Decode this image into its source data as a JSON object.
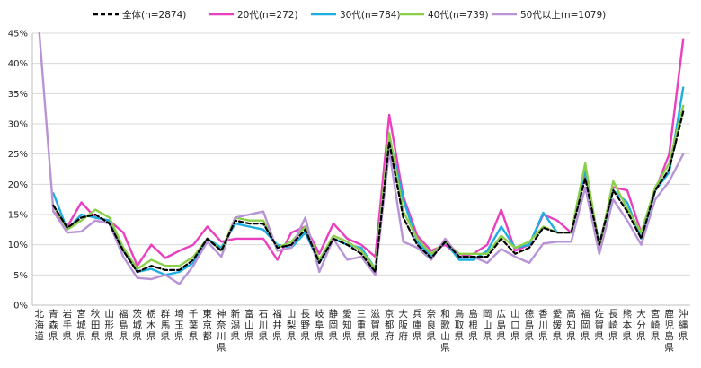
{
  "chart_data": {
    "type": "line",
    "title": "",
    "xlabel": "",
    "ylabel": "",
    "ylim": [
      0,
      45
    ],
    "ytick_values": [
      0,
      5,
      10,
      15,
      20,
      25,
      30,
      35,
      40,
      45
    ],
    "ytick_labels": [
      "0%",
      "5%",
      "10%",
      "15%",
      "20%",
      "25%",
      "30%",
      "35%",
      "40%",
      "45%"
    ],
    "legend_position": "top",
    "grid": true,
    "categories": [
      "北海道",
      "青森県",
      "岩手県",
      "宮城県",
      "秋田県",
      "山形県",
      "福島県",
      "茨城県",
      "栃木県",
      "群馬県",
      "埼玉県",
      "千葉県",
      "東京都",
      "神奈川県",
      "新潟県",
      "富山県",
      "石川県",
      "福井県",
      "山梨県",
      "長野県",
      "岐阜県",
      "静岡県",
      "愛知県",
      "三重県",
      "滋賀県",
      "京都府",
      "大阪府",
      "兵庫県",
      "奈良県",
      "和歌山県",
      "鳥取県",
      "島根県",
      "岡山県",
      "広島県",
      "山口県",
      "徳島県",
      "香川県",
      "愛媛県",
      "高知県",
      "福岡県",
      "佐賀県",
      "長崎県",
      "熊本県",
      "大分県",
      "宮崎県",
      "鹿児島県",
      "沖縄県"
    ],
    "series": [
      {
        "name": "全体(n=2874)",
        "color": "#000000",
        "dash": true,
        "values": [
          null,
          16.5,
          12.8,
          14.5,
          15.0,
          13.5,
          9.0,
          5.5,
          6.5,
          5.8,
          5.8,
          7.5,
          11.0,
          9.0,
          14.0,
          13.5,
          13.5,
          9.5,
          10.0,
          12.5,
          7.0,
          11.0,
          10.0,
          8.5,
          5.5,
          27.0,
          14.5,
          10.0,
          7.8,
          10.5,
          8.0,
          8.0,
          8.0,
          11.0,
          8.5,
          9.5,
          12.8,
          12.0,
          12.0,
          21.0,
          10.0,
          19.0,
          15.5,
          11.0,
          19.0,
          22.5,
          32.0
        ]
      },
      {
        "name": "20代(n=272)",
        "color": "#ea3fbf",
        "values": [
          null,
          15.5,
          13.0,
          17.0,
          14.5,
          14.0,
          12.0,
          6.5,
          10.0,
          7.8,
          9.0,
          10.0,
          13.0,
          10.5,
          11.0,
          11.0,
          11.0,
          7.5,
          12.0,
          13.0,
          8.5,
          13.5,
          11.0,
          10.0,
          8.0,
          31.5,
          18.0,
          11.5,
          9.0,
          10.0,
          8.0,
          8.5,
          10.0,
          15.8,
          9.0,
          10.0,
          15.0,
          14.0,
          12.0,
          22.0,
          10.0,
          19.5,
          19.0,
          12.0,
          19.0,
          25.0,
          44.0
        ]
      },
      {
        "name": "30代(n=784)",
        "color": "#1eaee0",
        "values": [
          null,
          18.5,
          12.5,
          15.0,
          14.5,
          14.0,
          9.0,
          5.5,
          6.0,
          5.0,
          5.5,
          7.0,
          11.0,
          9.5,
          13.5,
          13.0,
          12.5,
          10.0,
          9.5,
          12.0,
          7.0,
          11.0,
          10.0,
          9.5,
          6.0,
          28.0,
          17.5,
          10.5,
          8.0,
          10.5,
          7.5,
          7.5,
          9.0,
          13.0,
          9.5,
          10.0,
          15.3,
          12.0,
          12.0,
          22.5,
          10.0,
          19.0,
          17.0,
          11.0,
          19.0,
          22.0,
          36.0
        ]
      },
      {
        "name": "40代(n=739)",
        "color": "#8ccf4b",
        "values": [
          null,
          16.5,
          12.5,
          14.0,
          15.8,
          14.5,
          9.5,
          6.0,
          7.5,
          6.5,
          6.5,
          8.0,
          11.0,
          9.0,
          14.5,
          14.0,
          14.0,
          9.5,
          10.5,
          13.0,
          7.5,
          11.5,
          10.5,
          9.0,
          6.0,
          28.5,
          15.5,
          11.0,
          8.5,
          10.5,
          8.5,
          8.5,
          8.5,
          11.5,
          9.5,
          10.5,
          13.0,
          12.0,
          12.0,
          23.5,
          9.5,
          20.5,
          16.0,
          12.0,
          19.5,
          23.5,
          33.0
        ]
      },
      {
        "name": "50代以上(n=1079)",
        "color": "#b894d6",
        "values": [
          45.0,
          15.5,
          12.0,
          12.2,
          14.0,
          13.5,
          8.0,
          4.5,
          4.3,
          5.0,
          3.5,
          6.5,
          10.5,
          8.0,
          14.5,
          15.0,
          15.5,
          9.0,
          9.5,
          14.5,
          5.5,
          11.0,
          7.5,
          8.0,
          5.0,
          25.5,
          10.5,
          9.5,
          7.5,
          11.0,
          8.0,
          8.0,
          7.0,
          9.3,
          8.0,
          7.0,
          10.2,
          10.5,
          10.5,
          19.5,
          8.5,
          17.5,
          14.0,
          10.0,
          17.5,
          20.5,
          25.0
        ]
      }
    ]
  }
}
